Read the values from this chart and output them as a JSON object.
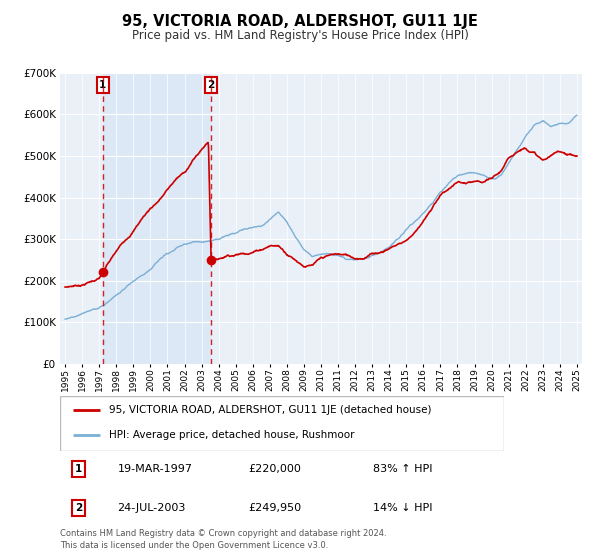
{
  "title": "95, VICTORIA ROAD, ALDERSHOT, GU11 1JE",
  "subtitle": "Price paid vs. HM Land Registry's House Price Index (HPI)",
  "legend_line1": "95, VICTORIA ROAD, ALDERSHOT, GU11 1JE (detached house)",
  "legend_line2": "HPI: Average price, detached house, Rushmoor",
  "transaction1_date": "19-MAR-1997",
  "transaction1_price": "£220,000",
  "transaction1_pct": "83% ↑ HPI",
  "transaction2_date": "24-JUL-2003",
  "transaction2_price": "£249,950",
  "transaction2_pct": "14% ↓ HPI",
  "footer": "Contains HM Land Registry data © Crown copyright and database right 2024.\nThis data is licensed under the Open Government Licence v3.0.",
  "hpi_color": "#7bafd4",
  "price_color": "#cc0000",
  "highlight_color": "#dce8f5",
  "plot_bg_color": "#eaf0f8",
  "ylim": [
    0,
    700000
  ],
  "yticks": [
    0,
    100000,
    200000,
    300000,
    400000,
    500000,
    600000,
    700000
  ],
  "ytick_labels": [
    "£0",
    "£100K",
    "£200K",
    "£300K",
    "£400K",
    "£500K",
    "£600K",
    "£700K"
  ],
  "transaction1_x": 1997.21,
  "transaction1_y": 220000,
  "transaction2_x": 2003.56,
  "transaction2_y": 249950,
  "xlim_left": 1994.7,
  "xlim_right": 2025.3,
  "red_pts_x": [
    1995.0,
    1996.0,
    1997.0,
    1997.21,
    1997.5,
    1998.0,
    1998.5,
    1999.0,
    1999.5,
    2000.0,
    2000.5,
    2001.0,
    2001.5,
    2002.0,
    2002.5,
    2003.0,
    2003.4,
    2003.56,
    2003.57,
    2004.0,
    2004.2,
    2004.5,
    2005.0,
    2005.5,
    2006.0,
    2006.5,
    2007.0,
    2007.5,
    2008.0,
    2008.5,
    2009.0,
    2009.5,
    2010.0,
    2010.5,
    2011.0,
    2011.5,
    2012.0,
    2012.5,
    2013.0,
    2013.5,
    2014.0,
    2014.5,
    2015.0,
    2015.5,
    2016.0,
    2016.5,
    2017.0,
    2017.5,
    2018.0,
    2018.5,
    2019.0,
    2019.5,
    2020.0,
    2020.5,
    2021.0,
    2021.5,
    2022.0,
    2022.5,
    2023.0,
    2023.5,
    2024.0,
    2024.5,
    2025.0
  ],
  "red_pts_y": [
    185000,
    192000,
    208000,
    220000,
    240000,
    268000,
    295000,
    320000,
    350000,
    375000,
    395000,
    420000,
    445000,
    460000,
    490000,
    515000,
    535000,
    249950,
    249950,
    255000,
    258000,
    265000,
    268000,
    272000,
    278000,
    285000,
    295000,
    295000,
    278000,
    265000,
    252000,
    252000,
    265000,
    270000,
    272000,
    268000,
    262000,
    265000,
    275000,
    280000,
    290000,
    300000,
    310000,
    330000,
    360000,
    385000,
    420000,
    435000,
    450000,
    445000,
    445000,
    440000,
    445000,
    460000,
    490000,
    510000,
    520000,
    510000,
    490000,
    500000,
    510000,
    505000,
    500000
  ],
  "blue_pts_x": [
    1995.0,
    1996.0,
    1997.0,
    1997.5,
    1998.0,
    1998.5,
    1999.0,
    1999.5,
    2000.0,
    2000.5,
    2001.0,
    2001.5,
    2002.0,
    2002.5,
    2003.0,
    2003.5,
    2004.0,
    2004.5,
    2005.0,
    2005.5,
    2006.0,
    2006.5,
    2007.0,
    2007.5,
    2008.0,
    2008.5,
    2009.0,
    2009.5,
    2010.0,
    2010.5,
    2011.0,
    2011.5,
    2012.0,
    2012.5,
    2013.0,
    2013.5,
    2014.0,
    2014.5,
    2015.0,
    2015.5,
    2016.0,
    2016.5,
    2017.0,
    2017.5,
    2018.0,
    2018.5,
    2019.0,
    2019.5,
    2020.0,
    2020.5,
    2021.0,
    2021.5,
    2022.0,
    2022.5,
    2023.0,
    2023.5,
    2024.0,
    2024.5,
    2025.0
  ],
  "blue_pts_y": [
    108000,
    118000,
    130000,
    145000,
    162000,
    178000,
    195000,
    212000,
    228000,
    248000,
    262000,
    272000,
    280000,
    285000,
    288000,
    292000,
    298000,
    305000,
    310000,
    318000,
    322000,
    328000,
    345000,
    360000,
    340000,
    305000,
    278000,
    262000,
    268000,
    270000,
    268000,
    258000,
    255000,
    258000,
    268000,
    278000,
    290000,
    308000,
    332000,
    352000,
    375000,
    400000,
    425000,
    448000,
    462000,
    468000,
    468000,
    462000,
    455000,
    462000,
    490000,
    520000,
    555000,
    580000,
    590000,
    575000,
    582000,
    580000,
    598000
  ]
}
